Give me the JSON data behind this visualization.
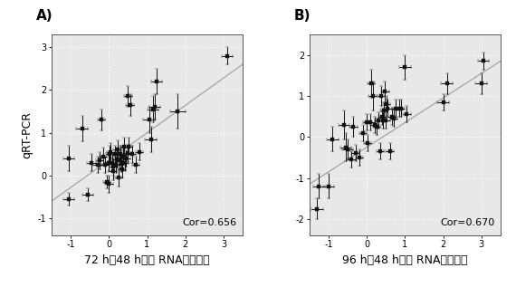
{
  "panel_A": {
    "label": "A)",
    "xlabel": "72 h和48 h样本 RNA测序比较",
    "ylabel": "qRT-PCR",
    "cor_text": "Cor=0.656",
    "xlim": [
      -1.5,
      3.5
    ],
    "ylim": [
      -1.4,
      3.3
    ],
    "xticks": [
      -1,
      0,
      1,
      2,
      3
    ],
    "yticks": [
      -1,
      0,
      1,
      2,
      3
    ],
    "points_x": [
      -1.05,
      -1.05,
      -0.7,
      -0.55,
      -0.45,
      -0.3,
      -0.25,
      -0.2,
      -0.15,
      -0.1,
      -0.05,
      0.0,
      0.0,
      0.02,
      0.05,
      0.08,
      0.1,
      0.12,
      0.15,
      0.18,
      0.2,
      0.22,
      0.25,
      0.28,
      0.3,
      0.33,
      0.35,
      0.38,
      0.4,
      0.42,
      0.45,
      0.48,
      0.5,
      0.52,
      0.55,
      0.6,
      0.7,
      0.8,
      1.05,
      1.1,
      1.15,
      1.2,
      1.25,
      1.8,
      3.1
    ],
    "points_y": [
      0.4,
      -0.55,
      1.1,
      -0.45,
      0.3,
      0.25,
      0.35,
      1.3,
      0.45,
      0.25,
      -0.15,
      0.3,
      -0.2,
      0.5,
      0.55,
      0.3,
      0.1,
      0.2,
      0.5,
      0.25,
      0.38,
      0.62,
      -0.05,
      0.35,
      0.5,
      0.28,
      0.15,
      0.45,
      0.68,
      0.3,
      0.4,
      0.52,
      1.85,
      0.68,
      1.65,
      0.5,
      0.25,
      0.55,
      1.3,
      0.85,
      1.55,
      1.6,
      2.2,
      1.5,
      2.8
    ],
    "xerr": [
      0.15,
      0.15,
      0.15,
      0.15,
      0.12,
      0.1,
      0.1,
      0.1,
      0.1,
      0.1,
      0.1,
      0.1,
      0.1,
      0.1,
      0.1,
      0.1,
      0.1,
      0.1,
      0.1,
      0.1,
      0.1,
      0.1,
      0.1,
      0.1,
      0.1,
      0.1,
      0.1,
      0.1,
      0.1,
      0.1,
      0.1,
      0.1,
      0.1,
      0.1,
      0.1,
      0.1,
      0.1,
      0.1,
      0.15,
      0.15,
      0.15,
      0.15,
      0.15,
      0.2,
      0.15
    ],
    "yerr": [
      0.3,
      0.15,
      0.3,
      0.15,
      0.2,
      0.2,
      0.2,
      0.25,
      0.2,
      0.2,
      0.15,
      0.2,
      0.2,
      0.2,
      0.2,
      0.2,
      0.2,
      0.2,
      0.2,
      0.2,
      0.2,
      0.2,
      0.2,
      0.2,
      0.2,
      0.2,
      0.2,
      0.2,
      0.2,
      0.2,
      0.2,
      0.2,
      0.25,
      0.2,
      0.25,
      0.2,
      0.2,
      0.2,
      0.3,
      0.3,
      0.3,
      0.3,
      0.3,
      0.4,
      0.2
    ],
    "trend_x": [
      -1.5,
      3.5
    ],
    "trend_y": [
      -0.6,
      2.6
    ]
  },
  "panel_B": {
    "label": "B)",
    "xlabel": "96 h和48 h样本 RNA测序比较",
    "ylabel": "",
    "cor_text": "Cor=0.670",
    "xlim": [
      -1.5,
      3.5
    ],
    "ylim": [
      -2.4,
      2.5
    ],
    "xticks": [
      -1,
      0,
      1,
      2,
      3
    ],
    "yticks": [
      -2,
      -1,
      0,
      1,
      2
    ],
    "points_x": [
      -1.3,
      -1.25,
      -1.0,
      -0.9,
      -0.6,
      -0.55,
      -0.5,
      -0.4,
      -0.35,
      -0.3,
      -0.2,
      -0.1,
      0.0,
      0.02,
      0.1,
      0.12,
      0.15,
      0.2,
      0.25,
      0.3,
      0.35,
      0.38,
      0.4,
      0.42,
      0.45,
      0.48,
      0.5,
      0.52,
      0.55,
      0.6,
      0.65,
      0.7,
      0.75,
      0.85,
      0.9,
      1.0,
      1.05,
      2.0,
      2.1,
      3.0,
      3.05
    ],
    "points_y": [
      -1.75,
      -1.2,
      -1.2,
      -0.05,
      0.3,
      -0.25,
      -0.3,
      -0.55,
      0.25,
      -0.4,
      -0.5,
      0.1,
      0.35,
      -0.15,
      0.35,
      1.3,
      1.0,
      0.3,
      0.25,
      0.4,
      -0.35,
      1.0,
      0.5,
      0.4,
      0.65,
      1.1,
      0.4,
      0.8,
      0.7,
      -0.35,
      0.5,
      0.45,
      0.7,
      0.7,
      0.7,
      1.7,
      0.55,
      0.85,
      1.3,
      1.3,
      1.85
    ],
    "xerr": [
      0.15,
      0.15,
      0.15,
      0.15,
      0.15,
      0.15,
      0.15,
      0.1,
      0.1,
      0.1,
      0.1,
      0.1,
      0.1,
      0.1,
      0.1,
      0.1,
      0.1,
      0.1,
      0.1,
      0.1,
      0.1,
      0.1,
      0.1,
      0.1,
      0.1,
      0.1,
      0.1,
      0.1,
      0.1,
      0.1,
      0.1,
      0.1,
      0.1,
      0.1,
      0.1,
      0.15,
      0.1,
      0.15,
      0.15,
      0.15,
      0.15
    ],
    "yerr": [
      0.25,
      0.3,
      0.3,
      0.3,
      0.35,
      0.35,
      0.25,
      0.2,
      0.25,
      0.2,
      0.2,
      0.2,
      0.2,
      0.2,
      0.2,
      0.35,
      0.35,
      0.2,
      0.2,
      0.2,
      0.2,
      0.25,
      0.2,
      0.2,
      0.2,
      0.25,
      0.2,
      0.2,
      0.2,
      0.2,
      0.2,
      0.2,
      0.2,
      0.2,
      0.2,
      0.3,
      0.2,
      0.2,
      0.25,
      0.25,
      0.2
    ],
    "trend_x": [
      -1.5,
      3.5
    ],
    "trend_y": [
      -1.15,
      1.85
    ]
  },
  "fig_bg": "#ffffff",
  "axes_bg": "#e8e8e8",
  "point_color": "#111111",
  "trend_color": "#aaaaaa",
  "marker_size": 3.0,
  "elinewidth": 0.7,
  "capsize": 1.2,
  "label_fontsize": 9,
  "tick_fontsize": 7,
  "cor_fontsize": 8,
  "panel_label_fontsize": 11
}
